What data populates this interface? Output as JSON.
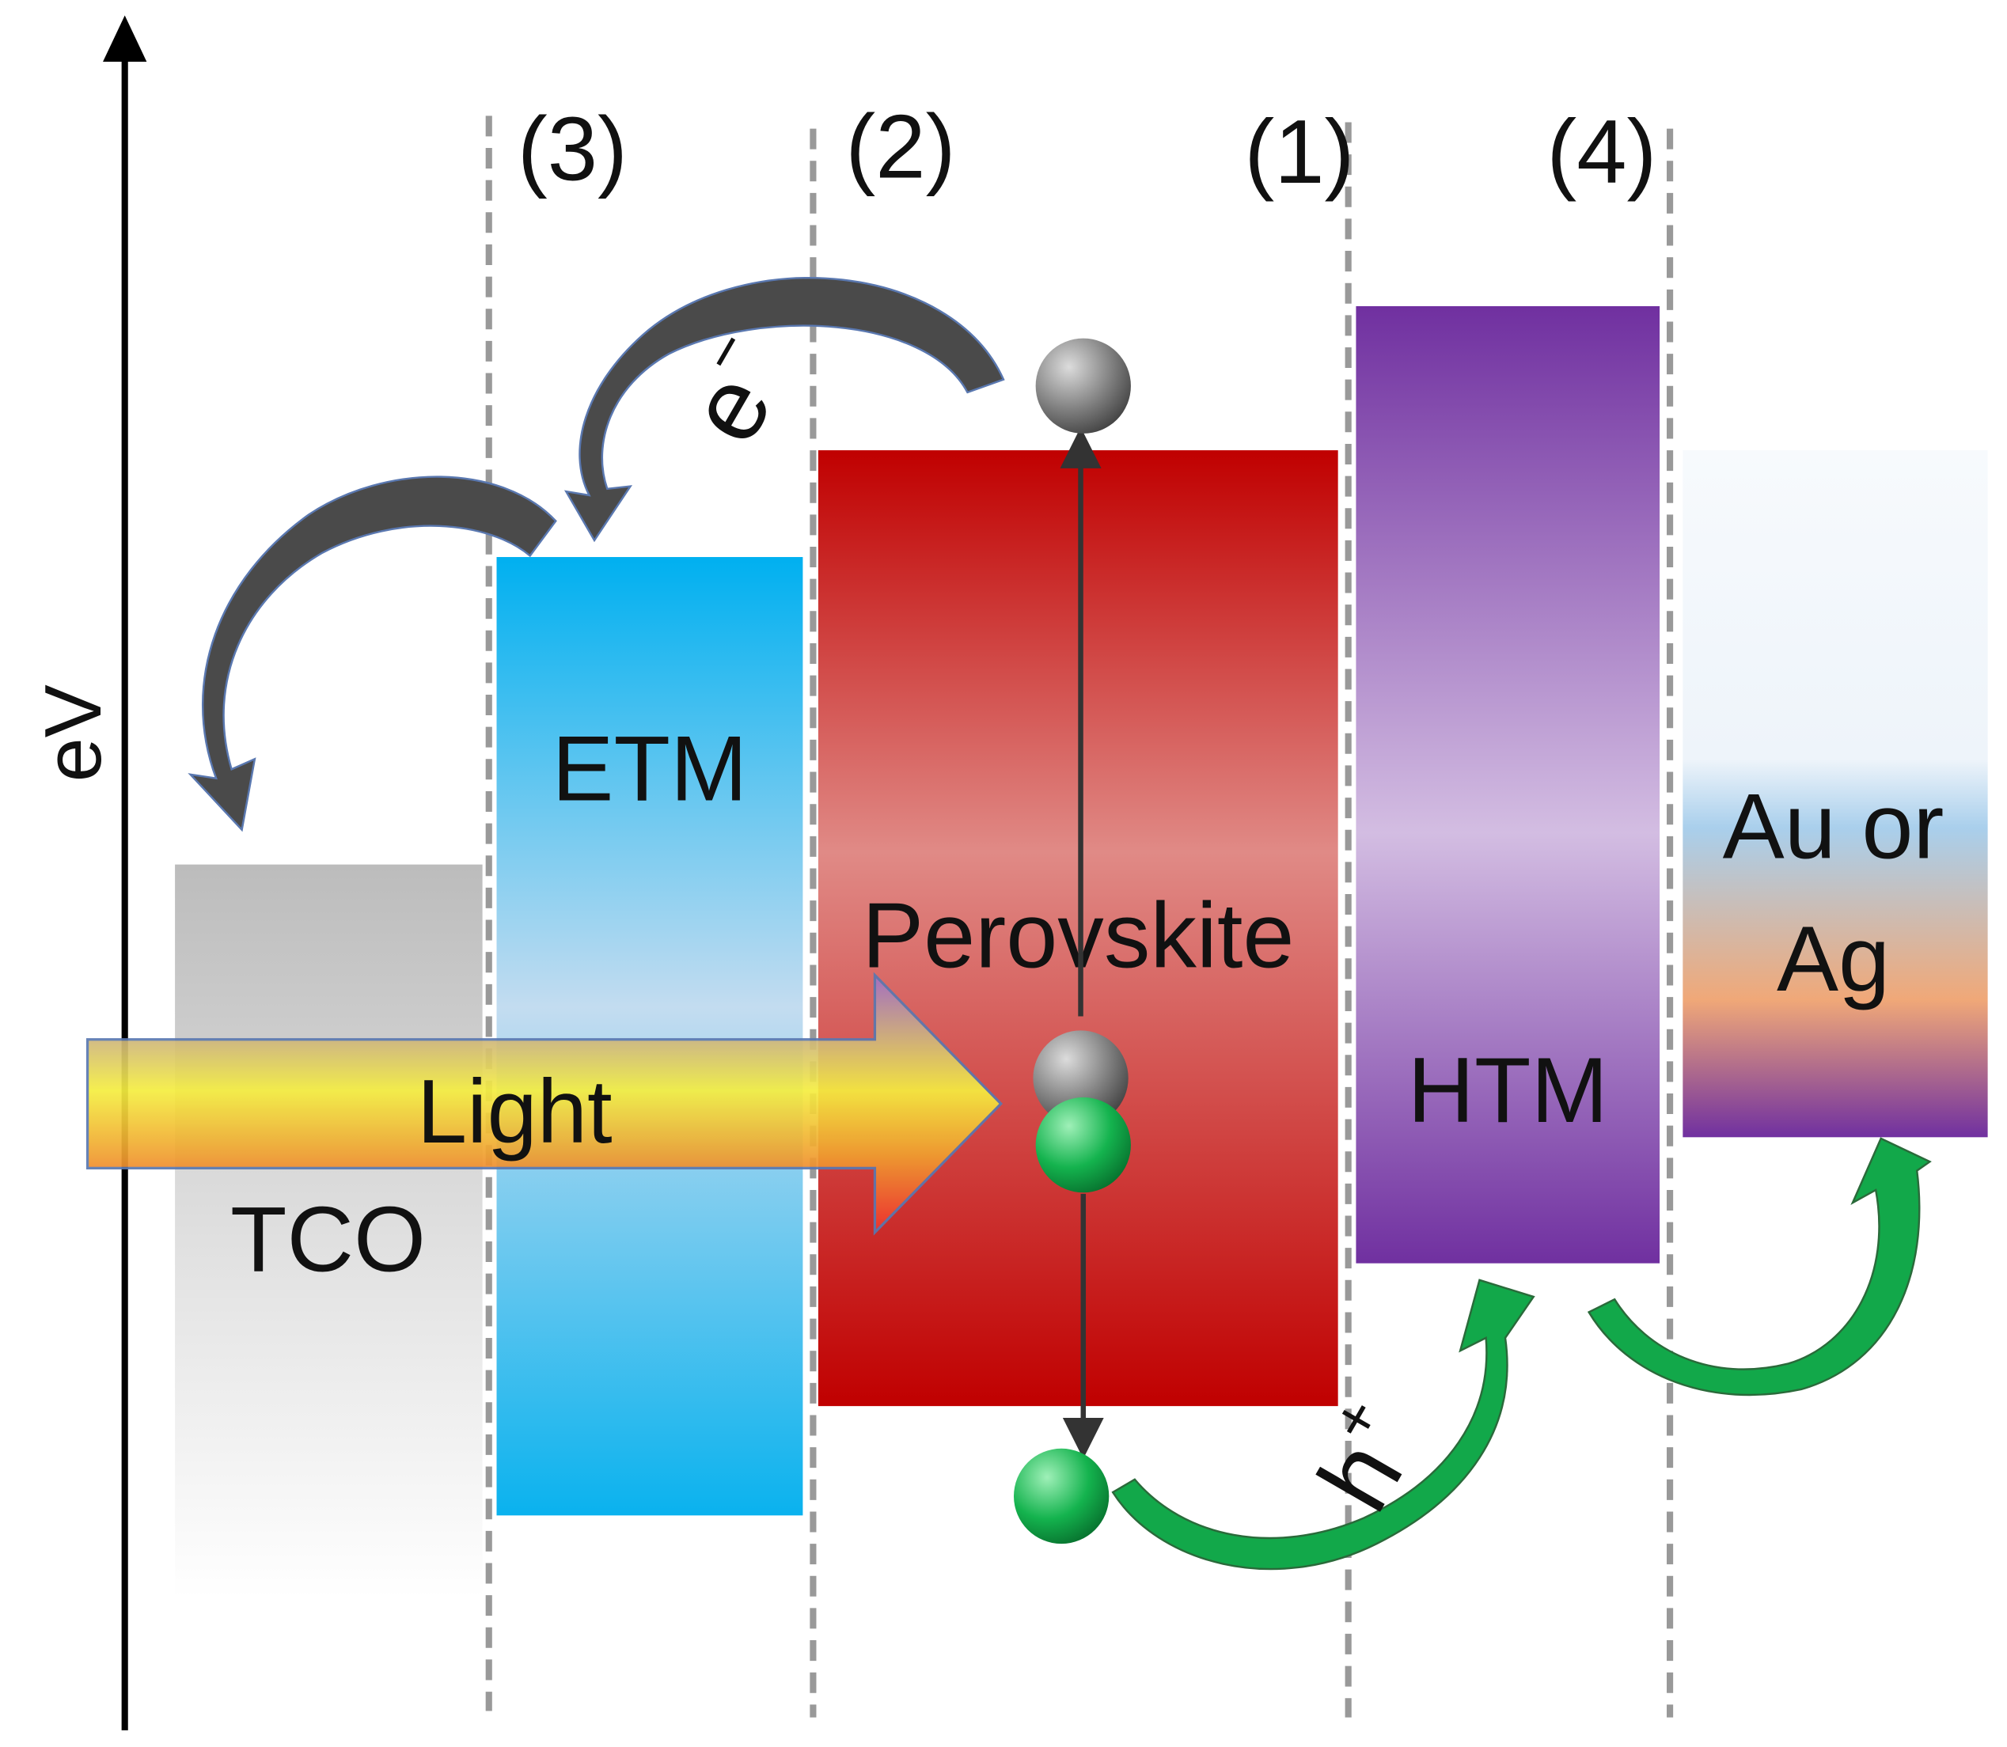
{
  "axis": {
    "label": "eV"
  },
  "interfaces": [
    "(3)",
    "(2)",
    "(1)",
    "(4)"
  ],
  "layers": {
    "tco": "TCO",
    "etm": "ETM",
    "perovskite": "Perovskite",
    "htm": "HTM",
    "electrode_line1": "Au or",
    "electrode_line2": "Ag"
  },
  "light": "Light",
  "electron": {
    "base": "e",
    "sup": "−"
  },
  "hole": {
    "base": "h",
    "sup": "+"
  },
  "colors": {
    "etm": "#00b0f0",
    "perovskite": "#c00000",
    "htm": "#7030a0",
    "electron_arrow": "#4a4a4a",
    "hole_arrow": "#12a84a"
  }
}
